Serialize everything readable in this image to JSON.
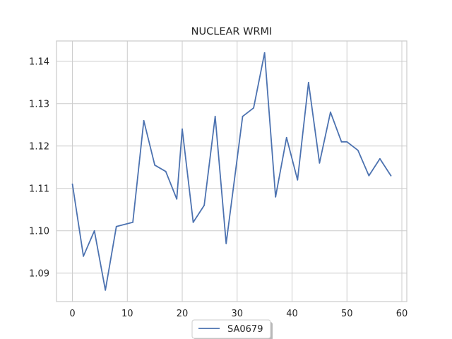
{
  "chart_data": {
    "type": "line",
    "title": "NUCLEAR WRMI",
    "xlabel": "",
    "ylabel": "",
    "xlim": [
      -2.9,
      60.9
    ],
    "ylim": [
      1.0833,
      1.1448
    ],
    "xticks": [
      0,
      10,
      20,
      30,
      40,
      50,
      60
    ],
    "yticks": [
      1.09,
      1.1,
      1.11,
      1.12,
      1.13,
      1.14
    ],
    "grid": true,
    "legend_position": "bottom-center",
    "series": [
      {
        "name": "SA0679",
        "color": "#4c72b0",
        "x": [
          0,
          2,
          4,
          6,
          8,
          11,
          13,
          15,
          17,
          19,
          20,
          22,
          24,
          26,
          28,
          31,
          33,
          35,
          37,
          39,
          41,
          43,
          45,
          47,
          49,
          50,
          52,
          54,
          56,
          58
        ],
        "y": [
          1.111,
          1.094,
          1.1,
          1.086,
          1.101,
          1.102,
          1.126,
          1.1155,
          1.114,
          1.1075,
          1.124,
          1.102,
          1.106,
          1.127,
          1.097,
          1.127,
          1.129,
          1.142,
          1.108,
          1.122,
          1.112,
          1.135,
          1.116,
          1.128,
          1.121,
          1.121,
          1.119,
          1.113,
          1.117,
          1.113
        ]
      }
    ]
  }
}
